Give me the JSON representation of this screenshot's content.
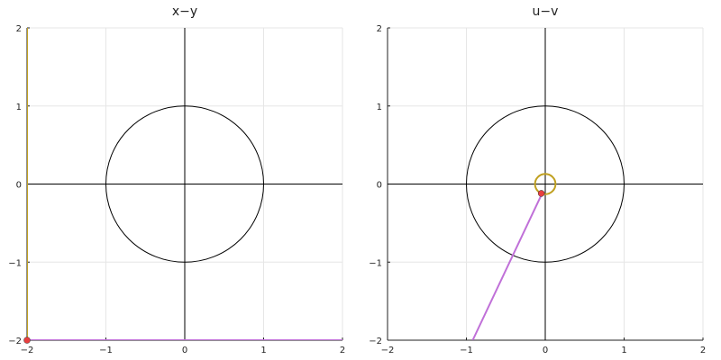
{
  "chart_data": [
    {
      "type": "line",
      "title": "x−y",
      "xlim": [
        -2,
        2
      ],
      "ylim": [
        -2,
        2
      ],
      "xticks": [
        -2,
        -1,
        0,
        1,
        2
      ],
      "yticks": [
        -2,
        -1,
        0,
        1,
        2
      ],
      "xtick_labels": [
        "−2",
        "−1",
        "0",
        "1",
        "2"
      ],
      "ytick_labels": [
        "−2",
        "−1",
        "0",
        "1",
        "2"
      ],
      "grid": true,
      "legend": "none",
      "series": [
        {
          "kind": "unit-circle",
          "color": "#000000",
          "center": [
            0,
            0
          ],
          "radius": 1
        },
        {
          "kind": "axis-line",
          "color": "#000000",
          "x": [
            -2,
            2
          ],
          "y": [
            0,
            0
          ]
        },
        {
          "kind": "axis-line",
          "color": "#000000",
          "x": [
            0,
            0
          ],
          "y": [
            -2,
            2
          ]
        },
        {
          "kind": "orbit",
          "color": "#c0a020",
          "x": [
            -2,
            -2
          ],
          "y": [
            -2,
            2
          ]
        },
        {
          "kind": "trajectory",
          "color": "#c070d8",
          "x": [
            -2,
            2
          ],
          "y": [
            -2,
            -2
          ]
        },
        {
          "kind": "marker",
          "color": "#e84040",
          "x": [
            -2
          ],
          "y": [
            -2
          ]
        }
      ]
    },
    {
      "type": "line",
      "title": "u−v",
      "xlim": [
        -2,
        2
      ],
      "ylim": [
        -2,
        2
      ],
      "xticks": [
        -2,
        -1,
        0,
        1,
        2
      ],
      "yticks": [
        -2,
        -1,
        0,
        1,
        2
      ],
      "xtick_labels": [
        "−2",
        "−1",
        "0",
        "1",
        "2"
      ],
      "ytick_labels": [
        "−2",
        "−1",
        "0",
        "1",
        "2"
      ],
      "grid": true,
      "legend": "none",
      "series": [
        {
          "kind": "unit-circle",
          "color": "#000000",
          "center": [
            0,
            0
          ],
          "radius": 1
        },
        {
          "kind": "axis-line",
          "color": "#000000",
          "x": [
            -2,
            2
          ],
          "y": [
            0,
            0
          ]
        },
        {
          "kind": "axis-line",
          "color": "#000000",
          "x": [
            0,
            0
          ],
          "y": [
            -2,
            2
          ]
        },
        {
          "kind": "orbit",
          "color": "#c0a020",
          "center": [
            0,
            0
          ],
          "radius": 0.13
        },
        {
          "kind": "trajectory",
          "color": "#c070d8",
          "x": [
            -0.04,
            -0.92
          ],
          "y": [
            -0.12,
            -2
          ]
        },
        {
          "kind": "marker",
          "color": "#e84040",
          "x": [
            -0.05
          ],
          "y": [
            -0.12
          ]
        }
      ]
    }
  ]
}
